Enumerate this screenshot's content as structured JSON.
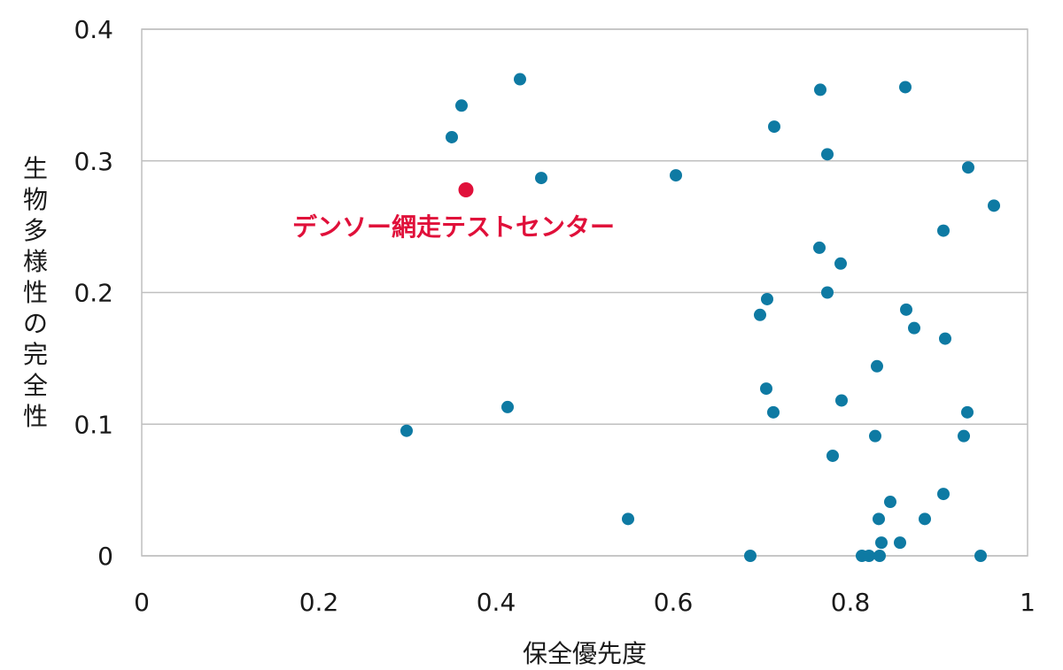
{
  "chart_data": {
    "type": "scatter",
    "xlabel": "保全優先度",
    "ylabel": "生物多様性の完全性",
    "xlim": [
      0,
      1
    ],
    "ylim": [
      0,
      0.4
    ],
    "x_ticks": [
      "0",
      "0.2",
      "0.4",
      "0.6",
      "0.8",
      "1"
    ],
    "y_ticks": [
      "0",
      "0.1",
      "0.2",
      "0.3",
      "0.4"
    ],
    "grid": "horizontal",
    "colors": {
      "points": "#0e7aa3",
      "highlight": "#e0103a",
      "grid": "#bfbfbf",
      "frame": "#bfbfbf"
    },
    "series": [
      {
        "points": [
          {
            "x": 0.35,
            "y": 0.318
          },
          {
            "x": 0.361,
            "y": 0.342
          },
          {
            "x": 0.427,
            "y": 0.362
          },
          {
            "x": 0.451,
            "y": 0.287
          },
          {
            "x": 0.603,
            "y": 0.289
          },
          {
            "x": 0.714,
            "y": 0.326
          },
          {
            "x": 0.766,
            "y": 0.354
          },
          {
            "x": 0.862,
            "y": 0.356
          },
          {
            "x": 0.774,
            "y": 0.305
          },
          {
            "x": 0.933,
            "y": 0.295
          },
          {
            "x": 0.962,
            "y": 0.266
          },
          {
            "x": 0.905,
            "y": 0.247
          },
          {
            "x": 0.765,
            "y": 0.234
          },
          {
            "x": 0.789,
            "y": 0.222
          },
          {
            "x": 0.706,
            "y": 0.195
          },
          {
            "x": 0.774,
            "y": 0.2
          },
          {
            "x": 0.698,
            "y": 0.183
          },
          {
            "x": 0.863,
            "y": 0.187
          },
          {
            "x": 0.872,
            "y": 0.173
          },
          {
            "x": 0.907,
            "y": 0.165
          },
          {
            "x": 0.83,
            "y": 0.144
          },
          {
            "x": 0.705,
            "y": 0.127
          },
          {
            "x": 0.79,
            "y": 0.118
          },
          {
            "x": 0.713,
            "y": 0.109
          },
          {
            "x": 0.932,
            "y": 0.109
          },
          {
            "x": 0.828,
            "y": 0.091
          },
          {
            "x": 0.928,
            "y": 0.091
          },
          {
            "x": 0.78,
            "y": 0.076
          },
          {
            "x": 0.299,
            "y": 0.095
          },
          {
            "x": 0.413,
            "y": 0.113
          },
          {
            "x": 0.549,
            "y": 0.028
          },
          {
            "x": 0.905,
            "y": 0.047
          },
          {
            "x": 0.845,
            "y": 0.041
          },
          {
            "x": 0.832,
            "y": 0.028
          },
          {
            "x": 0.884,
            "y": 0.028
          },
          {
            "x": 0.835,
            "y": 0.01
          },
          {
            "x": 0.856,
            "y": 0.01
          },
          {
            "x": 0.687,
            "y": 0.0
          },
          {
            "x": 0.813,
            "y": 0.0
          },
          {
            "x": 0.821,
            "y": 0.0
          },
          {
            "x": 0.833,
            "y": 0.0
          },
          {
            "x": 0.947,
            "y": 0.0
          }
        ]
      }
    ],
    "highlight": {
      "x": 0.366,
      "y": 0.278,
      "label": "デンソー網走テストセンター"
    }
  }
}
